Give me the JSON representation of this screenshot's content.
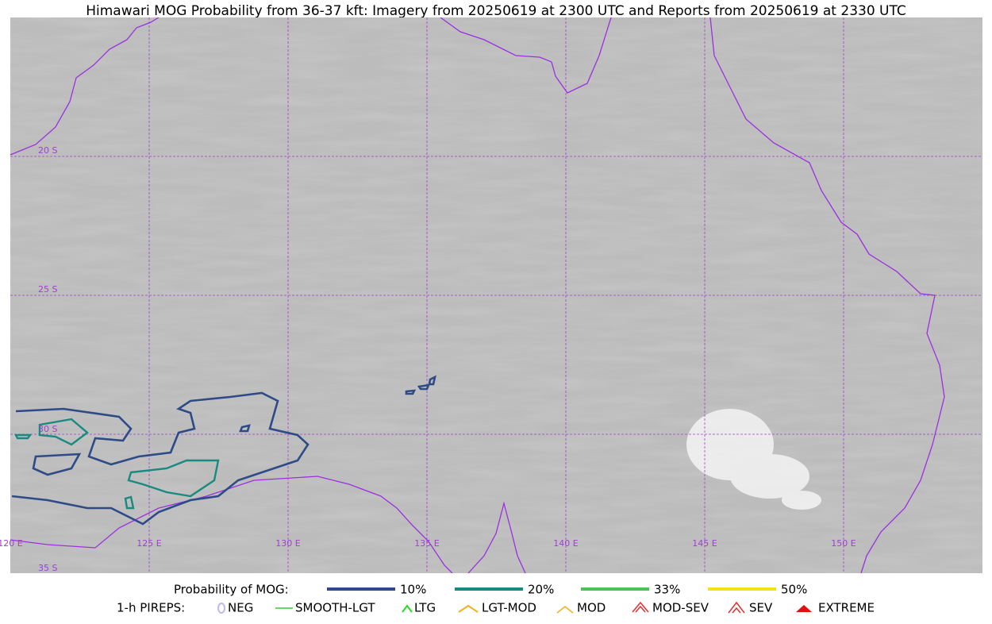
{
  "title": "Himawari MOG Probability from 36-37 kft: Imagery from 20250619 at 2300 UTC and Reports from 20250619 at 2330 UTC",
  "lat_labels": [
    "20 S",
    "25 S",
    "30 S",
    "35 S"
  ],
  "lon_labels": [
    "120 E",
    "125 E",
    "130 E",
    "135 E",
    "140 E",
    "145 E",
    "150 E"
  ],
  "probability_legend": {
    "label": "Probability of MOG:",
    "items": [
      {
        "label": "10%",
        "color": "#2e4a87"
      },
      {
        "label": "20%",
        "color": "#1a8a80"
      },
      {
        "label": "33%",
        "color": "#4cc35a"
      },
      {
        "label": "50%",
        "color": "#f5e11a"
      }
    ]
  },
  "pirep_legend": {
    "label": "1-h PIREPS:",
    "items": [
      {
        "label": "NEG",
        "color": "#b9b9f0"
      },
      {
        "label": "SMOOTH-LGT",
        "color": "#33cc33"
      },
      {
        "label": "LTG",
        "color": "#22dd22"
      },
      {
        "label": "LGT-MOD",
        "color": "#f0b020"
      },
      {
        "label": "MOD",
        "color": "#f0b020"
      },
      {
        "label": "MOD-SEV",
        "color": "#e03030"
      },
      {
        "label": "SEV",
        "color": "#e03030"
      },
      {
        "label": "EXTREME",
        "color": "#e01010"
      }
    ]
  }
}
